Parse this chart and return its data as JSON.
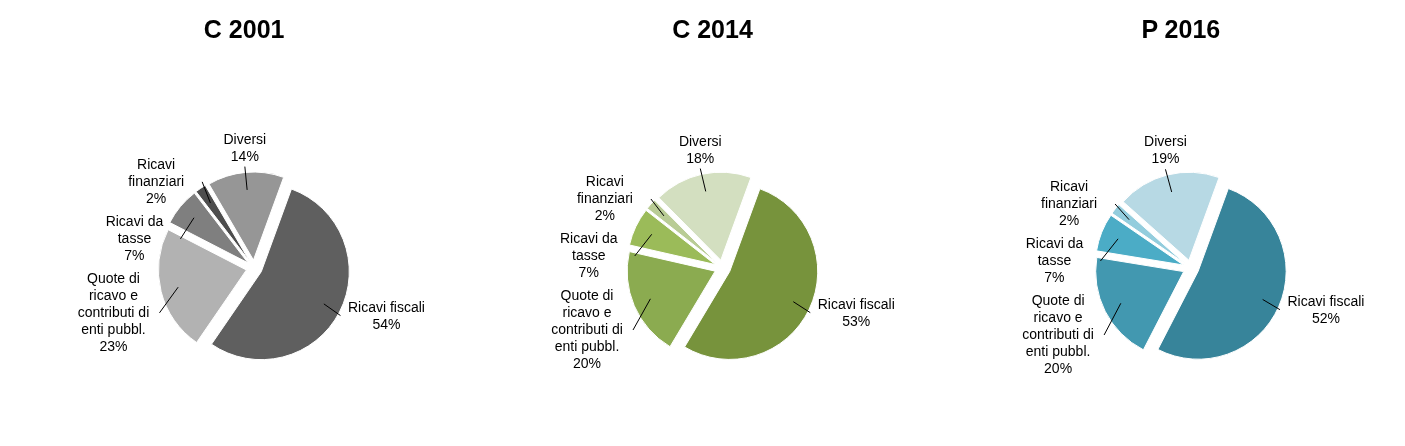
{
  "chart_data": [
    {
      "type": "pie",
      "title": "C 2001",
      "categories": [
        "Ricavi fiscali",
        "Quote di ricavo e contributi di enti pubbl.",
        "Ricavi da tasse",
        "Ricavi finanziari",
        "Diversi"
      ],
      "values": [
        54,
        23,
        7,
        2,
        14
      ],
      "value_labels": [
        "54%",
        "23%",
        "7%",
        "2%",
        "14%"
      ],
      "colors": [
        "#5f5f5f",
        "#b2b2b2",
        "#7f7f7f",
        "#4d4d4d",
        "#969696"
      ]
    },
    {
      "type": "pie",
      "title": "C 2014",
      "categories": [
        "Ricavi fiscali",
        "Quote di ricavo e contributi di enti pubbl.",
        "Ricavi da tasse",
        "Ricavi finanziari",
        "Diversi"
      ],
      "values": [
        53,
        20,
        7,
        2,
        18
      ],
      "value_labels": [
        "53%",
        "20%",
        "7%",
        "2%",
        "18%"
      ],
      "colors": [
        "#77933c",
        "#8bab50",
        "#9bbb59",
        "#b9cc95",
        "#d3dfc0"
      ]
    },
    {
      "type": "pie",
      "title": "P 2016",
      "categories": [
        "Ricavi fiscali",
        "Quote di ricavo e contributi di enti pubbl.",
        "Ricavi da tasse",
        "Ricavi finanziari",
        "Diversi"
      ],
      "values": [
        52,
        20,
        7,
        2,
        19
      ],
      "value_labels": [
        "52%",
        "20%",
        "7%",
        "2%",
        "19%"
      ],
      "colors": [
        "#37849a",
        "#4298b0",
        "#4bacc6",
        "#93cddd",
        "#b7d9e4"
      ]
    }
  ]
}
